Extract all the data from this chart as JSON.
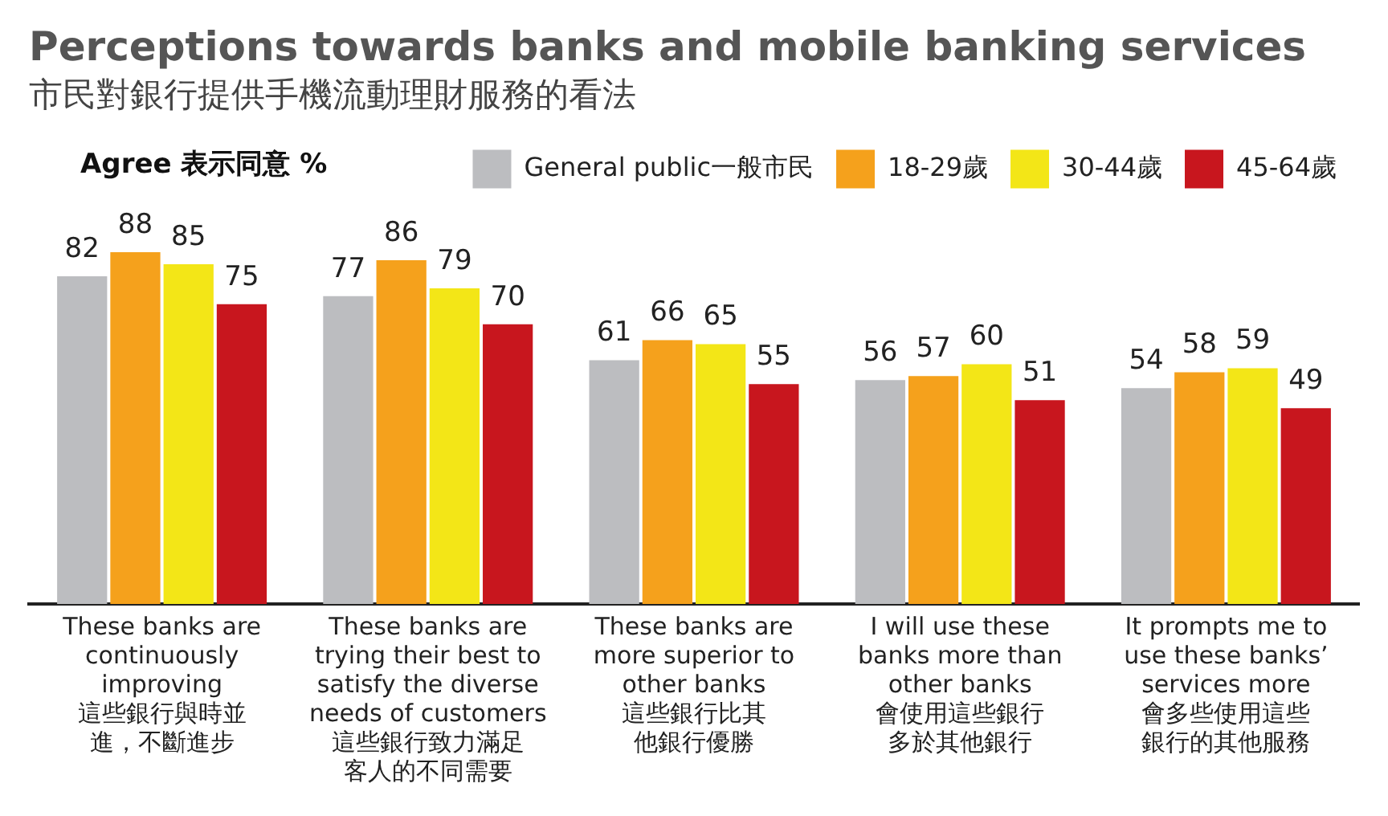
{
  "chart_data": {
    "type": "bar",
    "title": "Perceptions towards banks and mobile banking services",
    "subtitle": "市民對銀行提供手機流動理財服務的看法",
    "ylabel": "Agree 表示同意 %",
    "categories": [
      "These banks are\ncontinuously\nimproving\n這些銀行與時並進，不斷進步",
      "These banks are\ntrying their best to\nsatisfy the diverse\nneeds of customers\n這些銀行致力滿足客人的不同需要",
      "These banks are\nmore superior to\nother banks\n這些銀行比其他銀行優勝",
      "I will use these\nbanks more than\nother banks\n會使用這些銀行多於其他銀行",
      "It prompts me to\nuse these banks’\nservices more\n會多些使用這些銀行的其他服務"
    ],
    "series": [
      {
        "name": "General public一般市民",
        "color": "#bcbdc0",
        "values": [
          82,
          77,
          61,
          56,
          54
        ]
      },
      {
        "name": "18-29歲",
        "color": "#f5a11c",
        "values": [
          88,
          86,
          66,
          57,
          58
        ]
      },
      {
        "name": "30-44歲",
        "color": "#f3e617",
        "values": [
          85,
          79,
          65,
          60,
          59
        ]
      },
      {
        "name": "45-64歲",
        "color": "#c8161e",
        "values": [
          75,
          70,
          55,
          51,
          49
        ]
      }
    ],
    "data_labels": true,
    "grid": false,
    "legend": "top right"
  }
}
